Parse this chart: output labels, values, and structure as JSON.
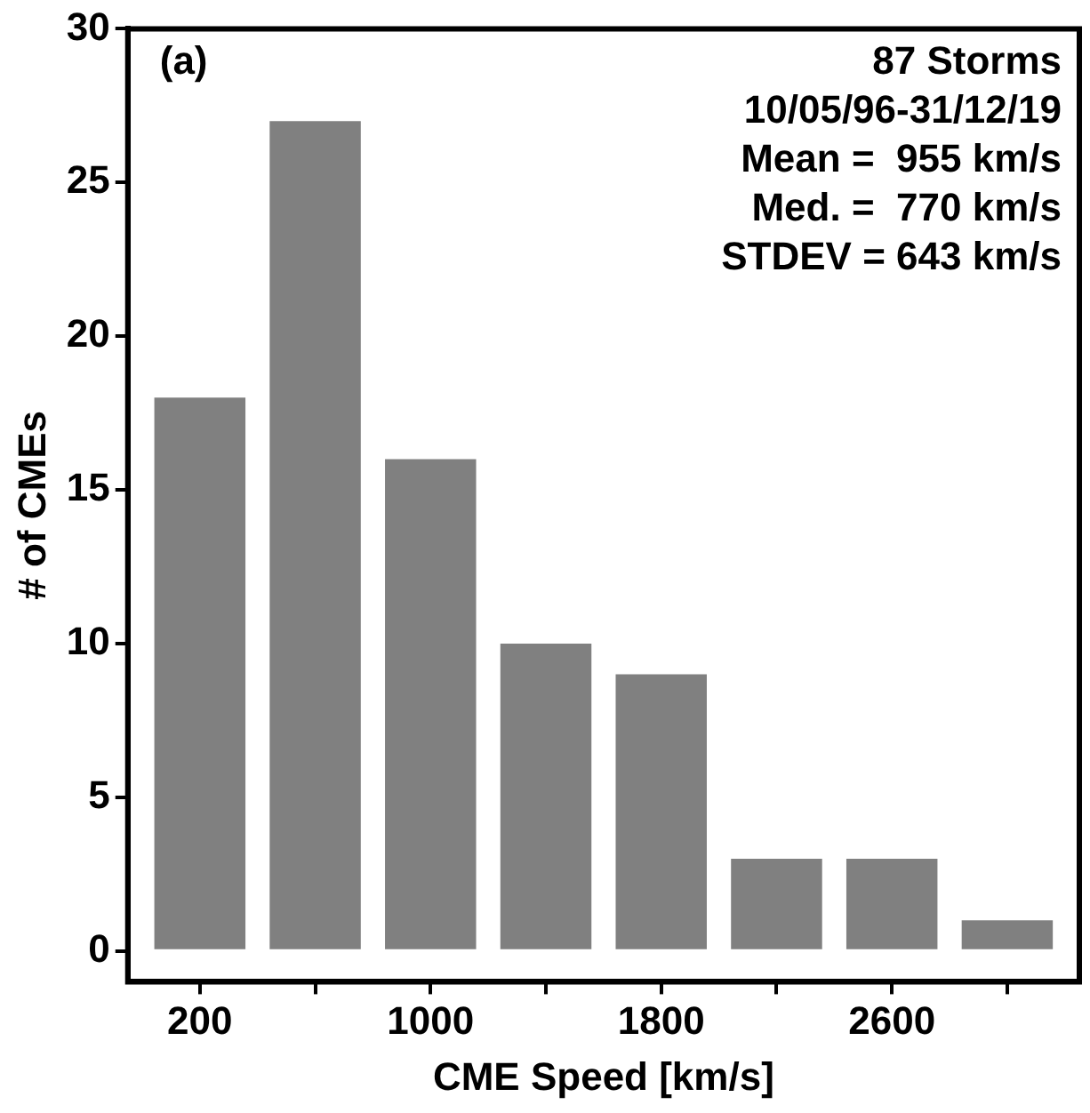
{
  "chart_data": {
    "type": "histogram",
    "xlabel": "CME Speed [km/s]",
    "ylabel": "# of CMEs",
    "bins": [
      0,
      400,
      800,
      1200,
      1600,
      2000,
      2400,
      2800,
      3200
    ],
    "values": [
      18,
      27,
      16,
      10,
      9,
      3,
      3,
      1
    ],
    "color": "#808080",
    "xlim": [
      -50,
      3250
    ],
    "xticks": [
      200,
      {
        "value": 600,
        "label": null
      },
      1000,
      {
        "value": 1400,
        "label": null
      },
      1800,
      {
        "value": 2200,
        "label": null
      },
      2600,
      {
        "value": 3000,
        "label": null
      }
    ],
    "ylim": [
      -1,
      30
    ],
    "yticks": [
      0,
      5,
      10,
      15,
      20,
      25,
      30
    ],
    "grid": false,
    "legend": false,
    "annotations": [
      "(a)",
      "87 Storms",
      "10/05/96-31/12/19",
      "Mean =  955 km/s",
      "Med. =  770 km/s",
      "STDEV = 643 km/s"
    ]
  }
}
